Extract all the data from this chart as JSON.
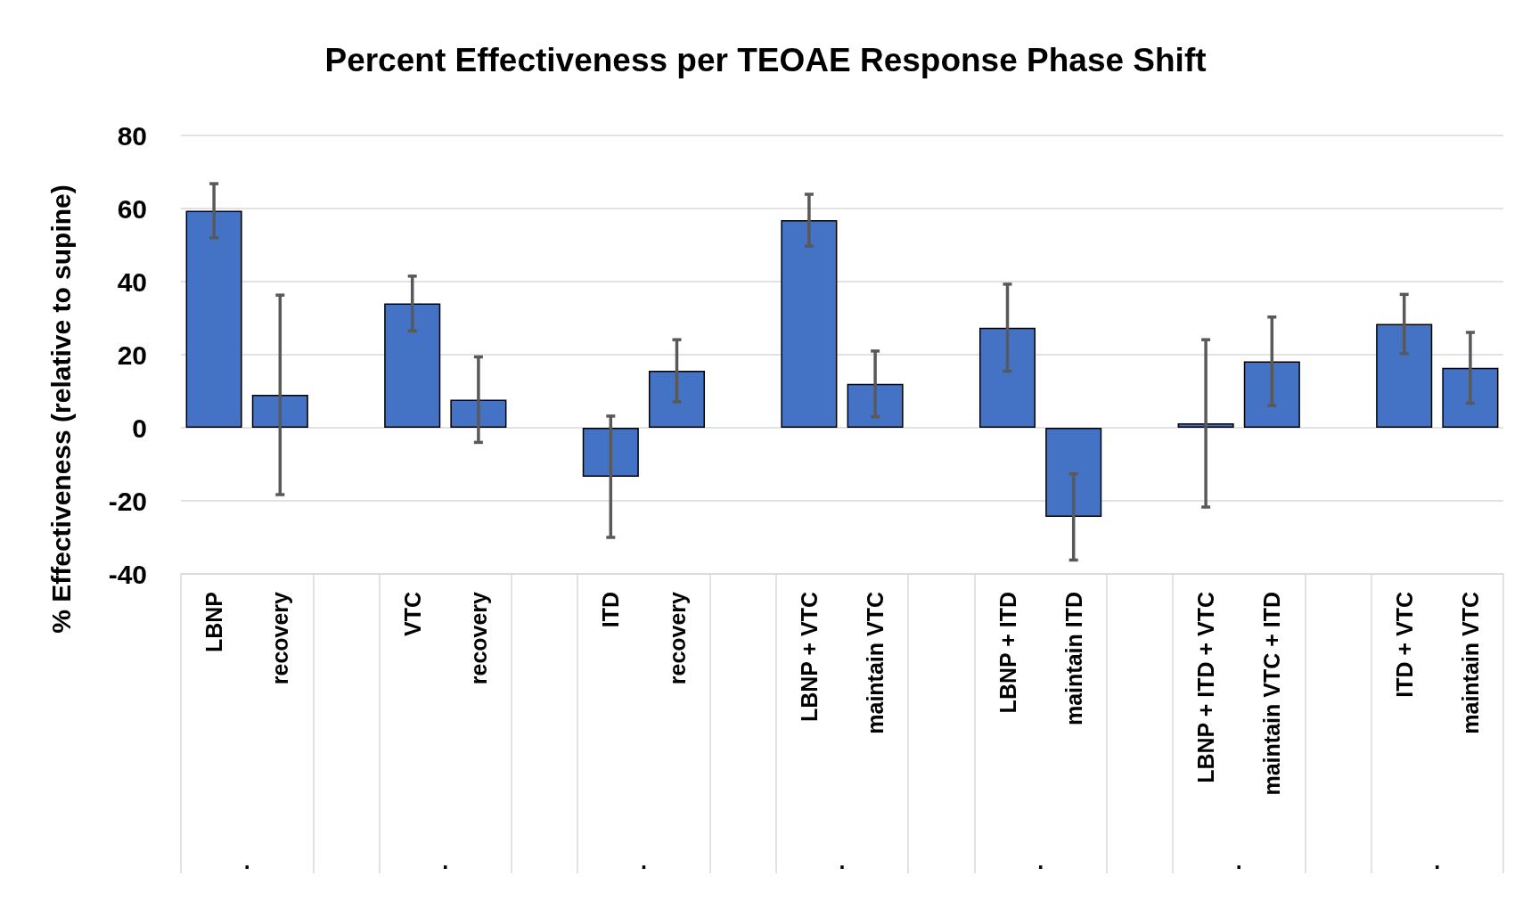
{
  "chart_data": {
    "type": "bar",
    "title": "Percent Effectiveness per TEOAE Response Phase Shift",
    "ylabel": "% Effectiveness (relative to supine)",
    "categories": [
      "LBNP",
      "recovery",
      null,
      "VTC",
      "recovery",
      null,
      "ITD",
      "recovery",
      null,
      "LBNP + VTC",
      "maintain VTC",
      null,
      "LBNP + ITD",
      "maintain ITD",
      null,
      "LBNP + ITD + VTC",
      "maintain VTC + ITD",
      null,
      "ITD + VTC",
      "maintain VTC"
    ],
    "values": [
      59.4,
      9.0,
      null,
      34.0,
      7.7,
      null,
      -13.4,
      15.6,
      null,
      56.8,
      12.0,
      null,
      27.4,
      -24.4,
      null,
      1.2,
      18.2,
      null,
      28.4,
      16.4
    ],
    "errors": [
      7.4,
      27.3,
      null,
      7.5,
      11.7,
      null,
      16.6,
      8.5,
      null,
      7.1,
      9.0,
      null,
      11.9,
      11.8,
      null,
      22.9,
      12.1,
      null,
      8.1,
      9.7
    ],
    "color": "#4472c4",
    "ylim": [
      -40,
      80
    ],
    "yticks": [
      -40,
      -20,
      0,
      20,
      40,
      60,
      80
    ],
    "grid": "y",
    "annotations": [
      ".",
      ".",
      ".",
      ".",
      ".",
      ".",
      "."
    ]
  }
}
